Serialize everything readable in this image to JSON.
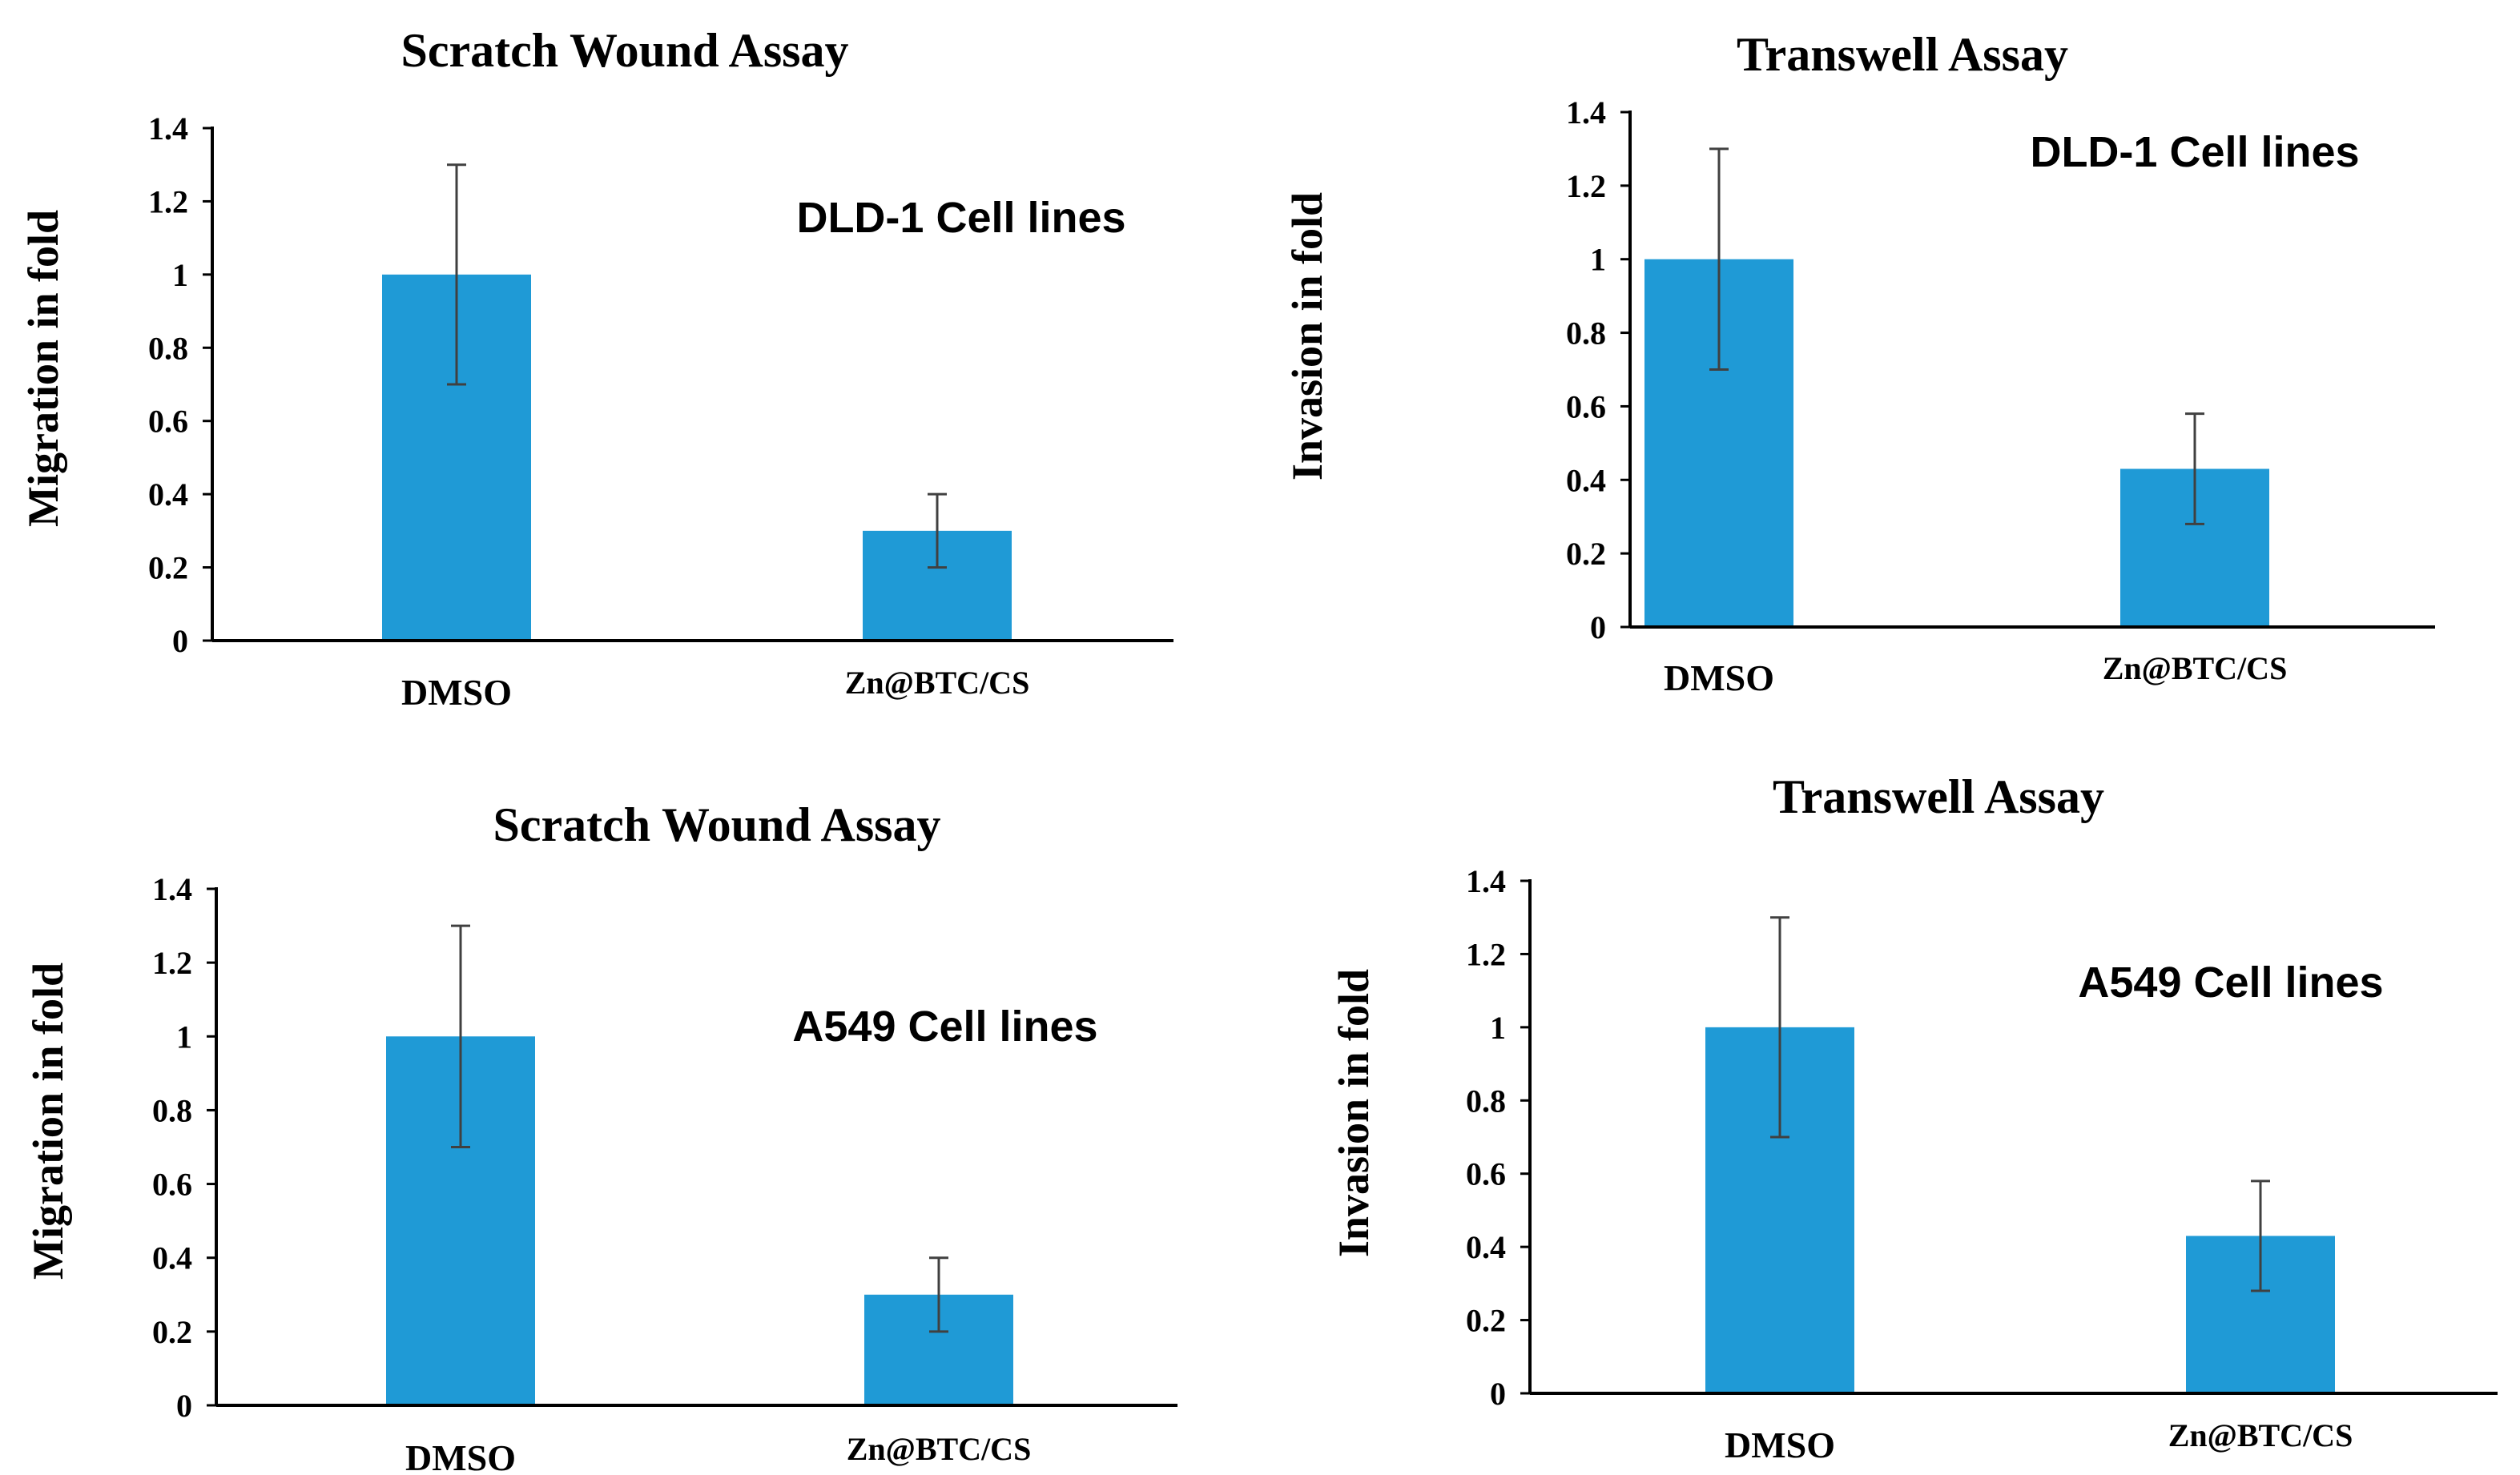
{
  "colors": {
    "bar": "#1f9ad6",
    "axis": "#000000",
    "error": "#404040"
  },
  "chart_data": [
    {
      "type": "bar",
      "title": "Scratch Wound Assay",
      "ylabel": "Migration in fold",
      "annotation": "DLD-1 Cell lines",
      "categories": [
        "DMSO",
        "Zn@BTC/CS"
      ],
      "values": [
        1.0,
        0.3
      ],
      "errors": [
        0.3,
        0.1
      ],
      "ylim": [
        0,
        1.4
      ],
      "yticks": [
        "0",
        "0.2",
        "0.4",
        "0.6",
        "0.8",
        "1",
        "1.2",
        "1.4"
      ]
    },
    {
      "type": "bar",
      "title": "Transwell Assay",
      "ylabel": "Invasion in fold",
      "annotation": "DLD-1 Cell lines",
      "categories": [
        "DMSO",
        "Zn@BTC/CS"
      ],
      "values": [
        1.0,
        0.43
      ],
      "errors": [
        0.3,
        0.15
      ],
      "ylim": [
        0,
        1.4
      ],
      "yticks": [
        "0",
        "0.2",
        "0.4",
        "0.6",
        "0.8",
        "1",
        "1.2",
        "1.4"
      ]
    },
    {
      "type": "bar",
      "title": "Scratch Wound Assay",
      "ylabel": "Migration in fold",
      "annotation": "A549 Cell lines",
      "categories": [
        "DMSO",
        "Zn@BTC/CS"
      ],
      "values": [
        1.0,
        0.3
      ],
      "errors": [
        0.3,
        0.1
      ],
      "ylim": [
        0,
        1.4
      ],
      "yticks": [
        "0",
        "0.2",
        "0.4",
        "0.6",
        "0.8",
        "1",
        "1.2",
        "1.4"
      ]
    },
    {
      "type": "bar",
      "title": "Transwell Assay",
      "ylabel": "Invasion in fold",
      "annotation": "A549 Cell lines",
      "categories": [
        "DMSO",
        "Zn@BTC/CS"
      ],
      "values": [
        1.0,
        0.43
      ],
      "errors": [
        0.3,
        0.15
      ],
      "ylim": [
        0,
        1.4
      ],
      "yticks": [
        "0",
        "0.2",
        "0.4",
        "0.6",
        "0.8",
        "1",
        "1.2",
        "1.4"
      ]
    }
  ]
}
